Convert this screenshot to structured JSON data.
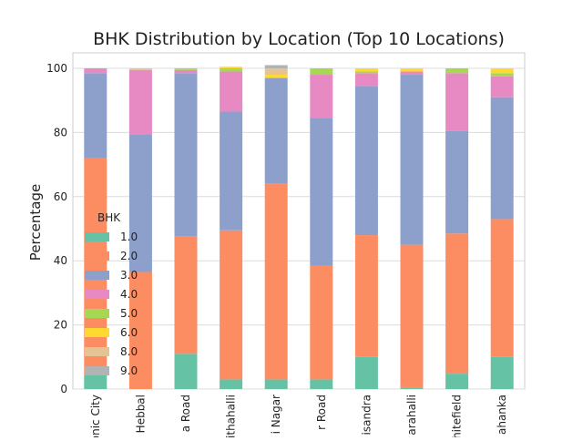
{
  "chart_data": {
    "type": "bar",
    "stacked": true,
    "title": "BHK Distribution by Location (Top 10 Locations)",
    "ylabel": "Percentage",
    "xlabel": "",
    "ylim": [
      0,
      100
    ],
    "yticks": [
      0,
      20,
      40,
      60,
      80,
      100
    ],
    "grid": true,
    "legend": {
      "title": "BHK",
      "placement": "center-left"
    },
    "categories": [
      "onic City",
      "Hebbal",
      "a Road",
      "ithahalli",
      "i Nagar",
      "r Road",
      "isandra",
      "arahalli",
      "hitefield",
      "ahanka"
    ],
    "series": [
      {
        "name": "1.0",
        "color": "#66c2a5",
        "values": [
          4.5,
          0.0,
          11.0,
          3.0,
          3.0,
          3.0,
          10.0,
          0.5,
          4.8,
          10.0
        ]
      },
      {
        "name": "2.0",
        "color": "#fc8d62",
        "values": [
          67.5,
          36.5,
          36.5,
          46.5,
          61.0,
          35.5,
          38.0,
          44.5,
          43.7,
          43.0
        ]
      },
      {
        "name": "3.0",
        "color": "#8da0cb",
        "values": [
          26.5,
          43.0,
          51.0,
          37.0,
          33.0,
          46.0,
          46.5,
          53.0,
          32.0,
          38.0
        ]
      },
      {
        "name": "4.0",
        "color": "#e78ac3",
        "values": [
          1.5,
          20.0,
          1.0,
          12.5,
          0.0,
          13.5,
          4.0,
          1.0,
          18.0,
          6.5
        ]
      },
      {
        "name": "5.0",
        "color": "#a6d854",
        "values": [
          0.0,
          0.0,
          0.5,
          1.0,
          0.0,
          2.0,
          0.5,
          0.0,
          1.5,
          1.0
        ]
      },
      {
        "name": "6.0",
        "color": "#ffd92f",
        "values": [
          0.0,
          0.0,
          0.0,
          0.5,
          1.0,
          0.0,
          1.0,
          1.0,
          0.0,
          1.5
        ]
      },
      {
        "name": "8.0",
        "color": "#e5c494",
        "values": [
          0.0,
          0.5,
          0.0,
          0.0,
          2.0,
          0.0,
          0.0,
          0.0,
          0.0,
          0.0
        ]
      },
      {
        "name": "9.0",
        "color": "#b3b3b3",
        "values": [
          0.0,
          0.0,
          0.0,
          0.0,
          1.0,
          0.0,
          0.0,
          0.0,
          0.0,
          0.0
        ]
      }
    ]
  }
}
